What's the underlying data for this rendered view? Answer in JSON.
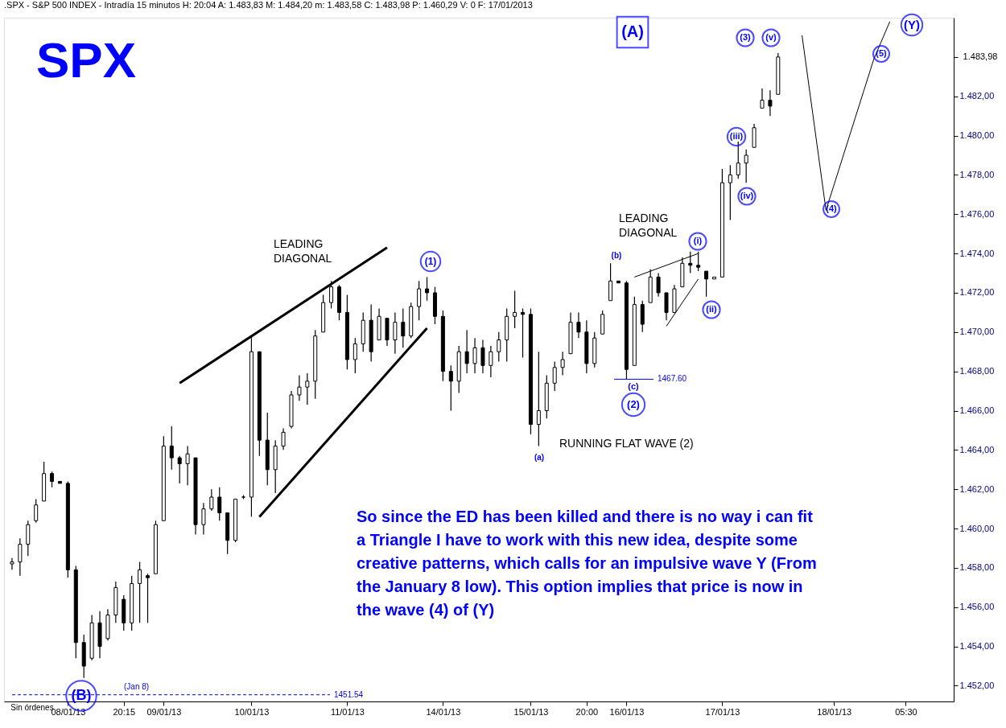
{
  "chart_data": {
    "type": "candlestick",
    "title": "SPX",
    "subtitle": ".SPX - S&P 500 INDEX - Intradía 15 minutos H: 20:04 A: 1.483,83 M: 1.484,20 m: 1.483,58 C: 1.483,98 P: 1.460,29 V: 0 F: 17/01/2013",
    "categories": [
      null,
      null,
      null,
      null,
      null,
      null,
      null,
      "08/01/13",
      null,
      null,
      null,
      null,
      null,
      null,
      "20:15",
      null,
      null,
      null,
      null,
      "09/01/13",
      null,
      null,
      null,
      null,
      null,
      null,
      null,
      null,
      null,
      null,
      "10/01/13",
      null,
      null,
      null,
      null,
      null,
      null,
      null,
      null,
      null,
      null,
      null,
      "11/01/13",
      null,
      null,
      null,
      null,
      null,
      null,
      null,
      null,
      null,
      null,
      null,
      "14/01/13",
      null,
      null,
      null,
      null,
      null,
      null,
      null,
      null,
      null,
      null,
      "15/01/13",
      null,
      null,
      null,
      null,
      null,
      null,
      "20:00",
      null,
      null,
      null,
      null,
      "16/01/13",
      null,
      null,
      null,
      null,
      null,
      null,
      null,
      null,
      null,
      null,
      null,
      "17/01/13",
      null,
      null,
      null,
      null,
      null,
      null,
      null,
      null,
      null,
      null,
      null,
      null,
      null,
      "18/01/13",
      null,
      null,
      null,
      null,
      null,
      null,
      null,
      null,
      "05:30",
      null,
      null,
      null,
      null,
      null
    ],
    "ohlc": [
      [
        1458.2,
        1458.5,
        1457.9,
        1458.3
      ],
      [
        1458.3,
        1459.5,
        1457.6,
        1459.2
      ],
      [
        1459.2,
        1460.4,
        1458.6,
        1460.2
      ],
      [
        1460.4,
        1461.5,
        1460.3,
        1461.2
      ],
      [
        1461.4,
        1463.4,
        1461.4,
        1462.8
      ],
      [
        1462.8,
        1462.9,
        1462.1,
        1462.4
      ],
      [
        1462.4,
        1462.4,
        1462.3,
        1462.3
      ],
      [
        1462.3,
        1462.4,
        1457.5,
        1457.9
      ],
      [
        1457.9,
        1458.1,
        1453.4,
        1454.2
      ],
      [
        1454.2,
        1454.6,
        1452.4,
        1453.0
      ],
      [
        1453.4,
        1455.6,
        1453.3,
        1455.2
      ],
      [
        1455.2,
        1455.8,
        1453.4,
        1454.0
      ],
      [
        1454.4,
        1455.9,
        1454.3,
        1455.6
      ],
      [
        1455.6,
        1457.3,
        1455.2,
        1457.0
      ],
      [
        1456.4,
        1456.6,
        1454.8,
        1455.2
      ],
      [
        1455.2,
        1457.6,
        1454.8,
        1457.2
      ],
      [
        1457.2,
        1458.3,
        1455.2,
        1457.9
      ],
      [
        1457.6,
        1457.7,
        1455.2,
        1457.5
      ],
      [
        1457.7,
        1460.4,
        1457.7,
        1460.2
      ],
      [
        1460.4,
        1464.7,
        1460.4,
        1464.2
      ],
      [
        1464.2,
        1465.2,
        1463.0,
        1463.6
      ],
      [
        1463.6,
        1463.7,
        1462.3,
        1463.3
      ],
      [
        1463.3,
        1464.2,
        1462.2,
        1463.8
      ],
      [
        1463.6,
        1463.6,
        1459.7,
        1460.2
      ],
      [
        1460.2,
        1461.3,
        1459.7,
        1461.0
      ],
      [
        1461.0,
        1462.0,
        1460.9,
        1461.6
      ],
      [
        1461.6,
        1462.1,
        1460.4,
        1460.8
      ],
      [
        1460.8,
        1460.8,
        1458.7,
        1459.4
      ],
      [
        1459.4,
        1461.5,
        1459.3,
        1461.5
      ],
      [
        1461.6,
        1461.7,
        1461.5,
        1461.6
      ],
      [
        1461.6,
        1469.8,
        1460.6,
        1469.0
      ],
      [
        1469.0,
        1469.0,
        1463.7,
        1464.5
      ],
      [
        1464.5,
        1465.9,
        1462.2,
        1463.0
      ],
      [
        1463.0,
        1464.5,
        1461.8,
        1464.2
      ],
      [
        1464.2,
        1465.1,
        1464.0,
        1464.9
      ],
      [
        1465.2,
        1467.0,
        1465.1,
        1466.8
      ],
      [
        1466.8,
        1467.8,
        1466.5,
        1467.2
      ],
      [
        1467.2,
        1467.9,
        1466.3,
        1467.5
      ],
      [
        1467.5,
        1470.1,
        1466.6,
        1469.8
      ],
      [
        1470.0,
        1471.9,
        1470.0,
        1471.5
      ],
      [
        1471.5,
        1472.6,
        1471.2,
        1472.3
      ],
      [
        1472.3,
        1472.4,
        1470.6,
        1471.0
      ],
      [
        1471.0,
        1471.9,
        1468.1,
        1468.6
      ],
      [
        1468.6,
        1469.7,
        1467.9,
        1469.4
      ],
      [
        1469.4,
        1471.0,
        1469.0,
        1470.6
      ],
      [
        1470.6,
        1471.4,
        1468.5,
        1469.0
      ],
      [
        1469.6,
        1471.2,
        1469.6,
        1470.8
      ],
      [
        1470.7,
        1470.7,
        1469.3,
        1469.6
      ],
      [
        1469.6,
        1471.0,
        1468.9,
        1470.5
      ],
      [
        1470.5,
        1471.2,
        1469.2,
        1469.8
      ],
      [
        1469.8,
        1471.5,
        1469.7,
        1471.3
      ],
      [
        1471.3,
        1472.6,
        1470.6,
        1472.2
      ],
      [
        1472.2,
        1472.8,
        1471.6,
        1472.0
      ],
      [
        1472.0,
        1472.3,
        1470.4,
        1470.8
      ],
      [
        1470.8,
        1471.1,
        1467.5,
        1468.0
      ],
      [
        1468.0,
        1468.3,
        1466.0,
        1467.5
      ],
      [
        1467.5,
        1469.3,
        1466.9,
        1469.0
      ],
      [
        1469.0,
        1470.1,
        1467.9,
        1468.4
      ],
      [
        1468.4,
        1469.7,
        1467.9,
        1469.2
      ],
      [
        1469.2,
        1469.6,
        1467.9,
        1468.3
      ],
      [
        1468.3,
        1469.3,
        1467.7,
        1469.0
      ],
      [
        1469.0,
        1470.0,
        1468.5,
        1469.6
      ],
      [
        1469.6,
        1471.2,
        1468.5,
        1470.8
      ],
      [
        1470.8,
        1472.1,
        1470.2,
        1471.0
      ],
      [
        1471.0,
        1471.2,
        1468.7,
        1470.9
      ],
      [
        1470.9,
        1471.2,
        1464.8,
        1465.3
      ],
      [
        1465.3,
        1469.0,
        1464.2,
        1466.0
      ],
      [
        1466.0,
        1467.8,
        1465.6,
        1467.4
      ],
      [
        1467.4,
        1468.5,
        1467.0,
        1468.2
      ],
      [
        1468.2,
        1469.0,
        1467.8,
        1468.6
      ],
      [
        1468.9,
        1471.0,
        1468.9,
        1470.5
      ],
      [
        1470.5,
        1471.0,
        1469.7,
        1470.0
      ],
      [
        1470.0,
        1470.6,
        1467.9,
        1468.4
      ],
      [
        1468.4,
        1470.0,
        1468.2,
        1469.7
      ],
      [
        1469.9,
        1471.1,
        1469.9,
        1470.9
      ],
      [
        1471.6,
        1473.5,
        1471.6,
        1472.6
      ],
      [
        1472.6,
        1472.6,
        1472.5,
        1472.5
      ],
      [
        1472.5,
        1472.6,
        1467.6,
        1468.1
      ],
      [
        1468.3,
        1471.8,
        1468.3,
        1471.4
      ],
      [
        1471.4,
        1471.6,
        1470.0,
        1470.4
      ],
      [
        1471.5,
        1473.2,
        1471.5,
        1472.8
      ],
      [
        1472.8,
        1473.0,
        1471.8,
        1472.0
      ],
      [
        1472.0,
        1472.0,
        1470.6,
        1471.0
      ],
      [
        1471.0,
        1472.4,
        1471.0,
        1472.2
      ],
      [
        1472.3,
        1473.8,
        1472.3,
        1473.5
      ],
      [
        1473.5,
        1474.1,
        1473.0,
        1473.4
      ],
      [
        1473.4,
        1474.1,
        1473.1,
        1473.3
      ],
      [
        1473.1,
        1473.1,
        1471.8,
        1472.7
      ],
      [
        1472.7,
        1472.8,
        1472.7,
        1472.8
      ],
      [
        1472.8,
        1478.3,
        1472.8,
        1477.6
      ],
      [
        1477.6,
        1478.5,
        1475.7,
        1478.0
      ],
      [
        1478.0,
        1479.7,
        1477.8,
        1478.6
      ],
      [
        1478.6,
        1479.3,
        1477.6,
        1479.0
      ],
      [
        1479.4,
        1480.6,
        1479.4,
        1480.4
      ],
      [
        1481.4,
        1482.4,
        1481.4,
        1481.8
      ],
      [
        1481.8,
        1482.3,
        1481.0,
        1481.5
      ],
      [
        1482.1,
        1484.2,
        1482.1,
        1484.0
      ],
      null,
      null,
      null,
      null,
      null,
      null,
      null,
      null,
      null,
      null,
      null,
      null,
      null,
      null,
      null,
      null,
      null,
      null,
      null,
      null,
      null
    ],
    "series": [
      {
        "type": "line",
        "color": "#000000",
        "values": [
          null,
          null,
          null,
          null,
          null,
          null,
          null,
          null,
          null,
          null,
          null,
          null,
          null,
          null,
          null,
          null,
          null,
          null,
          null,
          null,
          null,
          1467.4,
          null,
          null,
          null,
          null,
          null,
          null,
          null,
          null,
          null,
          null,
          null,
          null,
          null,
          null,
          null,
          null,
          null,
          null,
          null,
          null,
          null,
          null,
          null,
          null,
          null,
          1474.3,
          null,
          null,
          null,
          null,
          null,
          null,
          null,
          null,
          null,
          null,
          null,
          null,
          null,
          null,
          null,
          null,
          null,
          null,
          null,
          null,
          null,
          null,
          null,
          null,
          null,
          null,
          null,
          null,
          null,
          null,
          null,
          null,
          null,
          null,
          null,
          null,
          null,
          null,
          null,
          null,
          null,
          null,
          null,
          null,
          null,
          null,
          null,
          null,
          null,
          null,
          null,
          null,
          null,
          null,
          null,
          null,
          null,
          null,
          null,
          null,
          null,
          null,
          null,
          null,
          null,
          null,
          null,
          null,
          null,
          null
        ]
      },
      {
        "type": "line",
        "color": "#000000",
        "values": [
          null,
          null,
          null,
          null,
          null,
          null,
          null,
          null,
          null,
          null,
          null,
          null,
          null,
          null,
          null,
          null,
          null,
          null,
          null,
          null,
          null,
          null,
          null,
          null,
          null,
          null,
          null,
          null,
          null,
          null,
          null,
          1460.6,
          null,
          null,
          null,
          null,
          null,
          null,
          null,
          null,
          null,
          null,
          null,
          null,
          null,
          null,
          null,
          null,
          null,
          null,
          null,
          null,
          1470.2,
          null,
          null,
          null,
          null,
          null,
          null,
          null,
          null,
          null,
          null,
          null,
          null,
          null,
          null,
          null,
          null,
          null,
          null,
          null,
          null,
          null,
          null,
          null,
          null,
          null,
          null,
          null,
          null,
          null,
          null,
          null,
          null,
          null,
          null,
          null,
          null,
          null,
          null,
          null,
          null,
          null,
          null,
          null,
          null,
          null,
          null,
          null,
          null,
          null,
          null,
          null,
          null,
          null,
          null,
          null,
          null,
          null,
          null,
          null,
          null,
          null,
          null,
          null,
          null,
          null
        ]
      },
      {
        "type": "line",
        "color": "#000000",
        "values": [
          null,
          null,
          null,
          null,
          null,
          null,
          null,
          null,
          null,
          null,
          null,
          null,
          null,
          null,
          null,
          null,
          null,
          null,
          null,
          null,
          null,
          null,
          null,
          null,
          null,
          null,
          null,
          null,
          null,
          null,
          null,
          null,
          null,
          null,
          null,
          null,
          null,
          null,
          null,
          null,
          null,
          null,
          null,
          null,
          null,
          null,
          null,
          null,
          null,
          null,
          null,
          null,
          null,
          null,
          null,
          null,
          null,
          null,
          null,
          null,
          null,
          null,
          null,
          null,
          null,
          null,
          null,
          null,
          null,
          null,
          null,
          null,
          null,
          null,
          null,
          null,
          null,
          null,
          1472.8,
          null,
          null,
          null,
          null,
          null,
          null,
          null,
          1474.0,
          null,
          null,
          null,
          null,
          null,
          null,
          null,
          null,
          null,
          null,
          null,
          null,
          null,
          null,
          null,
          null,
          null,
          null,
          null,
          null,
          null,
          null,
          null,
          null,
          null,
          null,
          null,
          null,
          null,
          null,
          null
        ]
      },
      {
        "type": "line",
        "color": "#000000",
        "values": [
          null,
          null,
          null,
          null,
          null,
          null,
          null,
          null,
          null,
          null,
          null,
          null,
          null,
          null,
          null,
          null,
          null,
          null,
          null,
          null,
          null,
          null,
          null,
          null,
          null,
          null,
          null,
          null,
          null,
          null,
          null,
          null,
          null,
          null,
          null,
          null,
          null,
          null,
          null,
          null,
          null,
          null,
          null,
          null,
          null,
          null,
          null,
          null,
          null,
          null,
          null,
          null,
          null,
          null,
          null,
          null,
          null,
          null,
          null,
          null,
          null,
          null,
          null,
          null,
          null,
          null,
          null,
          null,
          null,
          null,
          null,
          null,
          null,
          null,
          null,
          null,
          null,
          null,
          null,
          null,
          null,
          null,
          1470.3,
          null,
          null,
          null,
          1472.7,
          null,
          null,
          null,
          null,
          null,
          null,
          null,
          null,
          null,
          null,
          null,
          null,
          null,
          null,
          null,
          null,
          null,
          null,
          null,
          null,
          null,
          null,
          null,
          null,
          null,
          null,
          null,
          null,
          null,
          null,
          null
        ]
      },
      {
        "type": "line",
        "color": "#000000",
        "values": [
          null,
          null,
          null,
          null,
          null,
          null,
          null,
          null,
          null,
          null,
          null,
          null,
          null,
          null,
          null,
          null,
          null,
          null,
          null,
          null,
          null,
          null,
          null,
          null,
          null,
          null,
          null,
          null,
          null,
          null,
          null,
          null,
          null,
          null,
          null,
          null,
          null,
          null,
          null,
          null,
          null,
          null,
          null,
          null,
          null,
          null,
          null,
          null,
          null,
          null,
          null,
          null,
          null,
          null,
          null,
          null,
          null,
          null,
          null,
          null,
          null,
          null,
          null,
          null,
          null,
          null,
          null,
          null,
          null,
          null,
          null,
          null,
          null,
          null,
          null,
          null,
          null,
          null,
          null,
          null,
          null,
          null,
          null,
          null,
          null,
          null,
          null,
          null,
          null,
          null,
          null,
          null,
          null,
          null,
          null,
          null,
          null,
          null,
          null,
          1485.1,
          null,
          null,
          1476.2,
          null,
          null,
          null,
          null,
          null,
          1483.9,
          null,
          1485.8,
          null,
          null,
          null,
          null,
          null,
          null,
          null
        ]
      }
    ],
    "ylim": [
      1451.2,
      1486.0
    ],
    "yticks": [
      {
        "value": 1452,
        "label": "1.452,00"
      },
      {
        "value": 1454,
        "label": "1.454,00"
      },
      {
        "value": 1456,
        "label": "1.456,00"
      },
      {
        "value": 1458,
        "label": "1.458,00"
      },
      {
        "value": 1460,
        "label": "1.460,00"
      },
      {
        "value": 1462,
        "label": "1.462,00"
      },
      {
        "value": 1464,
        "label": "1.464,00"
      },
      {
        "value": 1466,
        "label": "1.466,00"
      },
      {
        "value": 1468,
        "label": "1.468,00"
      },
      {
        "value": 1470,
        "label": "1.470,00"
      },
      {
        "value": 1472,
        "label": "1.472,00"
      },
      {
        "value": 1474,
        "label": "1.474,00"
      },
      {
        "value": 1476,
        "label": "1.476,00"
      },
      {
        "value": 1478,
        "label": "1.478,00"
      },
      {
        "value": 1480,
        "label": "1.480,00"
      },
      {
        "value": 1482,
        "label": "1.482,00"
      },
      {
        "value": 1484,
        "label": null
      }
    ],
    "ref_lines": [
      {
        "axis": "y",
        "value": 1451.54,
        "label": "1451.54",
        "color": "#0000ff",
        "line_style": "dashed"
      },
      {
        "axis": "y",
        "value": 1467.6,
        "label": "1467.60",
        "color": "#0000ff",
        "line_style": "solid"
      }
    ],
    "annotations": [
      "(A)",
      "(B)",
      "(1)",
      "(2)",
      "(3)",
      "(4)",
      "(5)",
      "(Y)",
      "(a)",
      "(b)",
      "(c)",
      "(i)",
      "(ii)",
      "(iii)",
      "(iv)",
      "(v)",
      "(Jan 8)",
      "LEADING\nDIAGONAL",
      "LEADING\nDIAGONAL",
      "RUNNING FLAT WAVE (2)",
      "So since the ED has been killed and there is no way i can fit\na Triangle I have to work with this new idea, despite some\ncreative patterns, which calls for an impulsive wave Y (From\nthe January 8 low). This option implies that price is now in\nthe wave (4) of (Y)",
      "Sin órdenes",
      "1.483,98"
    ]
  }
}
